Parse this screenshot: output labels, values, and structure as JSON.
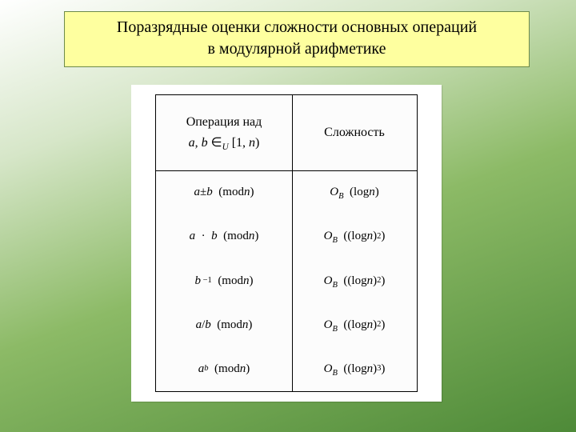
{
  "slide": {
    "title_line1": "Поразрядные оценки сложности основных операций",
    "title_line2": "в модулярной арифметике"
  },
  "table": {
    "header": {
      "left_line1": "Операция над",
      "left_line2_html": "<em class='it'>a</em>, <em class='it'>b</em> ∈<sub><em class='it'>U</em></sub> [1, <em class='it'>n</em>)",
      "right": "Сложность"
    },
    "rows": [
      {
        "op_html": "<em class='it'>a</em> ± <em class='it'>b</em>&nbsp;&nbsp;(mod <em class='it'>n</em>)",
        "cx_html": "<em class='it'>O<sub>B</sub></em>&nbsp;&nbsp;(log <em class='it'>n</em>)"
      },
      {
        "op_html": "<em class='it'>a</em>&nbsp;&nbsp;·&nbsp;&nbsp;<em class='it'>b</em>&nbsp;&nbsp;(mod <em class='it'>n</em>)",
        "cx_html": "<em class='it'>O<sub>B</sub></em>&nbsp;&nbsp;((log <em class='it'>n</em>)<sup>2</sup>)"
      },
      {
        "op_html": "<em class='it'>b</em><sup>&nbsp;−1</sup>&nbsp;&nbsp;(mod <em class='it'>n</em>)",
        "cx_html": "<em class='it'>O<sub>B</sub></em>&nbsp;&nbsp;((log <em class='it'>n</em>)<sup>2</sup>)"
      },
      {
        "op_html": "<em class='it'>a</em>/<em class='it'>b</em>&nbsp;&nbsp;(mod <em class='it'>n</em>)",
        "cx_html": "<em class='it'>O<sub>B</sub></em>&nbsp;&nbsp;((log <em class='it'>n</em>)<sup>2</sup>)"
      },
      {
        "op_html": "<em class='it'>a</em><sup><em class='it'>b</em></sup>&nbsp;&nbsp;(mod <em class='it'>n</em>)",
        "cx_html": "<em class='it'>O<sub>B</sub></em>&nbsp;&nbsp;((log <em class='it'>n</em>)<sup>3</sup>)"
      }
    ],
    "border_color": "#000000",
    "background_color": "#ffffff"
  },
  "style": {
    "title_bg": "#feff9f",
    "title_border": "#6d8a4a",
    "slide_gradient_hint": [
      "#ffffff",
      "#d6e6c8",
      "#8cba66",
      "#4e8a38"
    ]
  }
}
